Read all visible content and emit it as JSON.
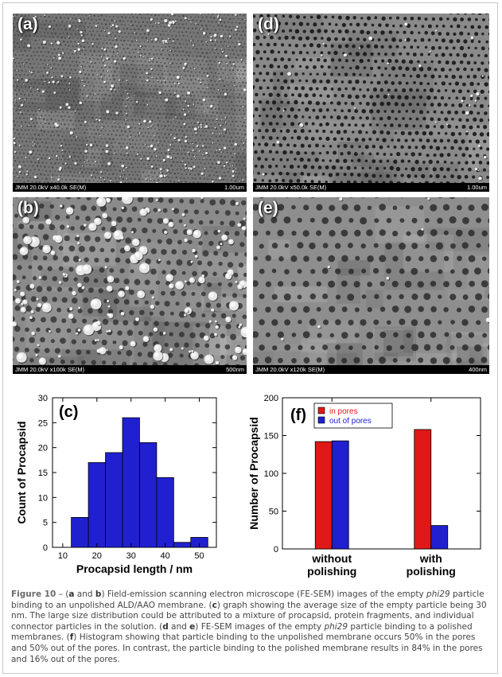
{
  "sem_panels": [
    {
      "id": "a",
      "letter": "(a)",
      "info": "JMM 20.0kV x40.0k SE(M)",
      "scale": "1.00um"
    },
    {
      "id": "d",
      "letter": "(d)",
      "info": "JMM 20.0kV x50.0k SE(M)",
      "scale": "1.00um"
    },
    {
      "id": "b",
      "letter": "(b)",
      "info": "JMM 20.0kV x100k SE(M)",
      "scale": "500nm"
    },
    {
      "id": "e",
      "letter": "(e)",
      "info": "JMM 20.0kV x120k SE(M)",
      "scale": "400nm"
    }
  ],
  "chart_data": [
    {
      "type": "bar",
      "panel": "(c)",
      "xlabel": "Procapsid length / nm",
      "ylabel": "Count of Procapsid",
      "bins": [
        [
          12.5,
          17.5
        ],
        [
          17.5,
          22.5
        ],
        [
          22.5,
          27.5
        ],
        [
          27.5,
          32.5
        ],
        [
          32.5,
          37.5
        ],
        [
          37.5,
          42.5
        ],
        [
          42.5,
          47.5
        ],
        [
          47.5,
          52.5
        ]
      ],
      "values": [
        6,
        17,
        19,
        26,
        21,
        14,
        1,
        2
      ],
      "xlim": [
        7,
        55
      ],
      "ylim": [
        0,
        30
      ],
      "xticks": [
        10,
        20,
        30,
        40,
        50
      ],
      "yticks": [
        0,
        5,
        10,
        15,
        20,
        25,
        30
      ],
      "bar_color": "#2020d0"
    },
    {
      "type": "bar",
      "panel": "(f)",
      "ylabel": "Number of Procapsid",
      "categories": [
        "without\npolishing",
        "with\npolishing"
      ],
      "series": [
        {
          "name": "in pores",
          "values": [
            142,
            158
          ],
          "color": "#e01818"
        },
        {
          "name": "out of pores",
          "values": [
            143,
            31
          ],
          "color": "#2020d0"
        }
      ],
      "ylim": [
        0,
        200
      ],
      "yticks": [
        0,
        50,
        100,
        150,
        200
      ],
      "legend": "top-left"
    }
  ],
  "caption": {
    "label": "Figure 10",
    "parts": [
      {
        "t": " – ("
      },
      {
        "t": "a",
        "b": true
      },
      {
        "t": " and "
      },
      {
        "t": "b",
        "b": true
      },
      {
        "t": ") Field-emission scanning electron microscope (FE-SEM) images of the empty "
      },
      {
        "t": "phi29",
        "i": true
      },
      {
        "t": " particle binding to an unpolished ALD/AAO membrane. ("
      },
      {
        "t": "c",
        "b": true
      },
      {
        "t": ") graph showing the average size of the empty particle being 30 nm. The large size distribution could be attributed to a mixture of procapsid, protein fragments, and individual connector particles in the solution. ("
      },
      {
        "t": "d",
        "b": true
      },
      {
        "t": " and "
      },
      {
        "t": "e",
        "b": true
      },
      {
        "t": ") FE-SEM images of the empty "
      },
      {
        "t": "phi29",
        "i": true
      },
      {
        "t": " particle binding to a polished membranes. ("
      },
      {
        "t": "f",
        "b": true
      },
      {
        "t": ") Histogram showing that particle binding to the unpolished membrane occurs 50% in the pores and 50% out of the pores. In contrast, the particle binding to the polished membrane results in 84% in the pores and 16% out of the pores."
      }
    ]
  }
}
